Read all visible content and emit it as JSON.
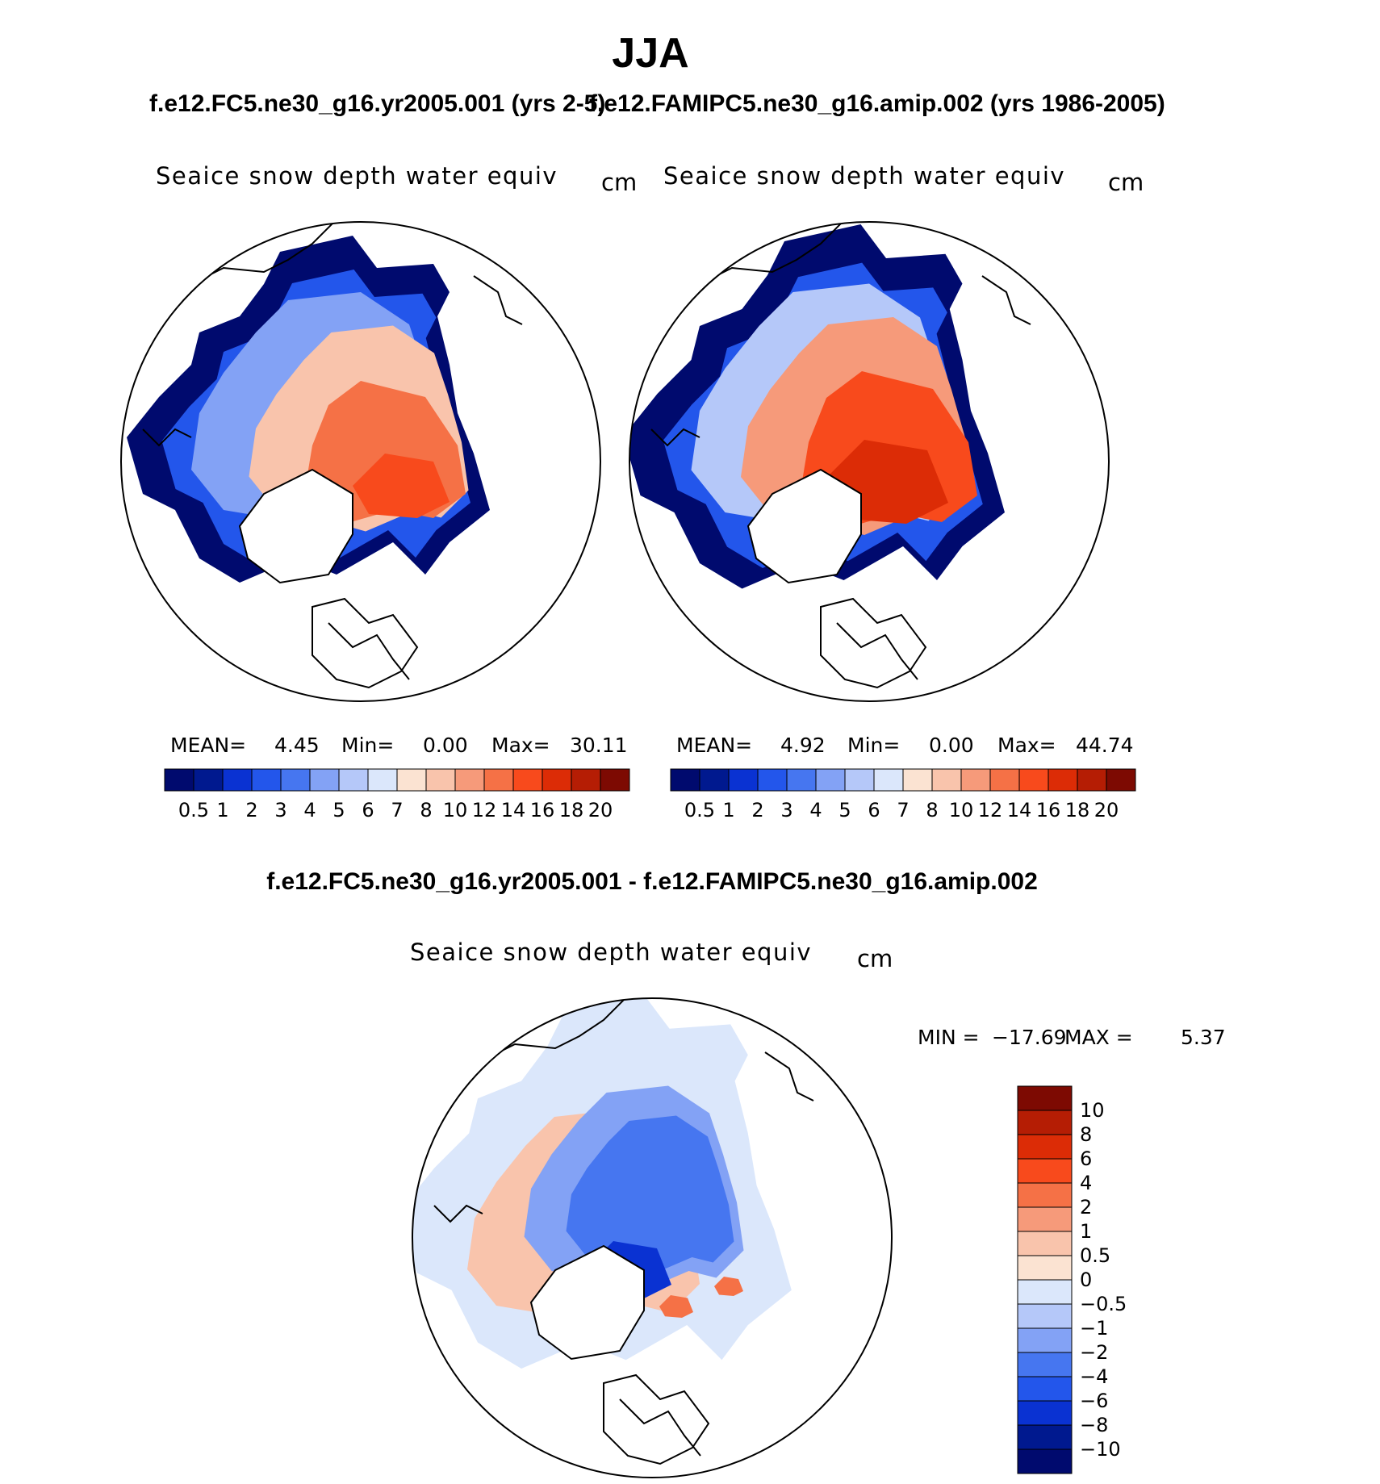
{
  "title": "JJA",
  "panels": [
    {
      "case_title": "f.e12.FC5.ne30_g16.yr2005.001 (yrs 2-5)",
      "variable": "Seaice snow depth water equiv",
      "units": "cm",
      "stats": {
        "mean_label": "MEAN=",
        "mean": "4.45",
        "min_label": "Min=",
        "min": "0.00",
        "max_label": "Max=",
        "max": "30.11"
      },
      "field": {
        "tone": "low",
        "region": "arctic-sea-ice",
        "peak_cm": 30.11
      }
    },
    {
      "case_title": "f.e12.FAMIPC5.ne30_g16.amip.002 (yrs 1986-2005)",
      "variable": "Seaice snow depth water equiv",
      "units": "cm",
      "stats": {
        "mean_label": "MEAN=",
        "mean": "4.92",
        "min_label": "Min=",
        "min": "0.00",
        "max_label": "Max=",
        "max": "44.74"
      },
      "field": {
        "tone": "high",
        "region": "arctic-sea-ice",
        "peak_cm": 44.74
      }
    }
  ],
  "diff_panel": {
    "case_title": "f.e12.FC5.ne30_g16.yr2005.001 - f.e12.FAMIPC5.ne30_g16.amip.002",
    "variable": "Seaice snow depth water equiv",
    "units": "cm",
    "stats": {
      "min_label": "MIN =",
      "min": "−17.69",
      "max_label": "MAX =",
      "max": "5.37"
    }
  },
  "chart_data": [
    {
      "type": "heatmap",
      "projection": "north-polar-stereographic",
      "title": "f.e12.FC5.ne30_g16.yr2005.001 (yrs 2-5)",
      "variable": "Seaice snow depth water equiv",
      "units": "cm",
      "mean": 4.45,
      "min": 0.0,
      "max": 30.11,
      "contour_levels": [
        0.5,
        1,
        2,
        3,
        4,
        5,
        6,
        7,
        8,
        10,
        12,
        14,
        16,
        18,
        20
      ]
    },
    {
      "type": "heatmap",
      "projection": "north-polar-stereographic",
      "title": "f.e12.FAMIPC5.ne30_g16.amip.002 (yrs 1986-2005)",
      "variable": "Seaice snow depth water equiv",
      "units": "cm",
      "mean": 4.92,
      "min": 0.0,
      "max": 44.74,
      "contour_levels": [
        0.5,
        1,
        2,
        3,
        4,
        5,
        6,
        7,
        8,
        10,
        12,
        14,
        16,
        18,
        20
      ]
    },
    {
      "type": "heatmap",
      "projection": "north-polar-stereographic",
      "title": "f.e12.FC5.ne30_g16.yr2005.001 - f.e12.FAMIPC5.ne30_g16.amip.002",
      "variable": "Seaice snow depth water equiv",
      "units": "cm",
      "min": -17.69,
      "max": 5.37,
      "contour_levels": [
        -10,
        -8,
        -6,
        -4,
        -2,
        -1,
        -0.5,
        0,
        0.5,
        1,
        2,
        4,
        6,
        8,
        10
      ]
    }
  ],
  "colorbar_main": {
    "labels": [
      "0.5",
      "1",
      "2",
      "3",
      "4",
      "5",
      "6",
      "7",
      "8",
      "10",
      "12",
      "14",
      "16",
      "18",
      "20"
    ],
    "colors": [
      "#000a6e",
      "#00198f",
      "#0a32d2",
      "#2356eb",
      "#4676f0",
      "#83a2f5",
      "#b5c8f9",
      "#dbe7fb",
      "#fbe3d2",
      "#f9c4ac",
      "#f69a7a",
      "#f57146",
      "#f84a1c",
      "#dc2c06",
      "#b51d04",
      "#7d0a02"
    ]
  },
  "colorbar_diff": {
    "labels": [
      "10",
      "8",
      "6",
      "4",
      "2",
      "1",
      "0.5",
      "0",
      "−0.5",
      "−1",
      "−2",
      "−4",
      "−6",
      "−8",
      "−10"
    ],
    "colors": [
      "#7d0a02",
      "#b51d04",
      "#dc2c06",
      "#f84a1c",
      "#f57146",
      "#f69a7a",
      "#f9c4ac",
      "#fbe3d2",
      "#dbe7fb",
      "#b5c8f9",
      "#83a2f5",
      "#4676f0",
      "#2356eb",
      "#0a32d2",
      "#00198f",
      "#000a6e"
    ]
  }
}
